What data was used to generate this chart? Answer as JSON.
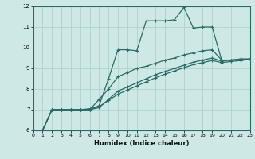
{
  "title": "",
  "xlabel": "Humidex (Indice chaleur)",
  "bg_color": "#cde8e5",
  "grid_color": "#aacfcc",
  "line_color": "#2a6b65",
  "xlim": [
    0,
    23
  ],
  "ylim": [
    6,
    12
  ],
  "xticks": [
    0,
    1,
    2,
    3,
    4,
    5,
    6,
    7,
    8,
    9,
    10,
    11,
    12,
    13,
    14,
    15,
    16,
    17,
    18,
    19,
    20,
    21,
    22,
    23
  ],
  "yticks": [
    6,
    7,
    8,
    9,
    10,
    11,
    12
  ],
  "line1_x": [
    0,
    1,
    2,
    3,
    4,
    5,
    6,
    7,
    8,
    9,
    10,
    11,
    12,
    13,
    14,
    15,
    16,
    17,
    18,
    19,
    20,
    21,
    22,
    23
  ],
  "line1_y": [
    6.0,
    6.0,
    7.0,
    7.0,
    7.0,
    7.0,
    7.0,
    7.2,
    8.5,
    9.9,
    9.9,
    9.85,
    11.3,
    11.3,
    11.3,
    11.35,
    11.95,
    10.95,
    11.0,
    11.0,
    9.4,
    9.4,
    9.45,
    9.45
  ],
  "line2_x": [
    0,
    1,
    2,
    3,
    4,
    5,
    6,
    7,
    8,
    9,
    10,
    11,
    12,
    13,
    14,
    15,
    16,
    17,
    18,
    19,
    20,
    21,
    22,
    23
  ],
  "line2_y": [
    6.0,
    6.0,
    7.0,
    7.0,
    7.0,
    7.0,
    7.0,
    7.5,
    8.0,
    8.6,
    8.8,
    9.0,
    9.1,
    9.25,
    9.4,
    9.5,
    9.65,
    9.75,
    9.85,
    9.9,
    9.4,
    9.4,
    9.45,
    9.45
  ],
  "line3_x": [
    0,
    1,
    2,
    3,
    4,
    5,
    6,
    7,
    8,
    9,
    10,
    11,
    12,
    13,
    14,
    15,
    16,
    17,
    18,
    19,
    20,
    21,
    22,
    23
  ],
  "line3_y": [
    6.0,
    6.0,
    7.0,
    7.0,
    7.0,
    7.0,
    7.0,
    7.1,
    7.5,
    7.9,
    8.1,
    8.3,
    8.5,
    8.7,
    8.85,
    9.0,
    9.15,
    9.3,
    9.4,
    9.5,
    9.35,
    9.4,
    9.4,
    9.45
  ],
  "line4_x": [
    0,
    1,
    2,
    3,
    4,
    5,
    6,
    7,
    8,
    9,
    10,
    11,
    12,
    13,
    14,
    15,
    16,
    17,
    18,
    19,
    20,
    21,
    22,
    23
  ],
  "line4_y": [
    6.0,
    6.0,
    7.0,
    7.0,
    7.0,
    7.0,
    7.05,
    7.15,
    7.45,
    7.75,
    7.95,
    8.15,
    8.35,
    8.55,
    8.72,
    8.88,
    9.03,
    9.18,
    9.28,
    9.38,
    9.28,
    9.33,
    9.38,
    9.43
  ]
}
